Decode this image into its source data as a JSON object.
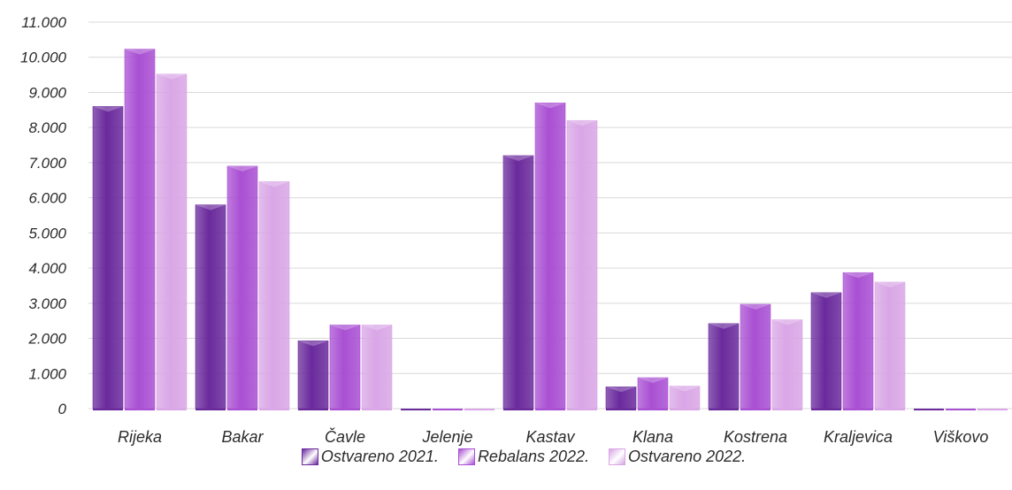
{
  "colors": {
    "series": [
      "#6a2a9c",
      "#a94fd3",
      "#d9a6e6"
    ],
    "grid": "#d9d9d9",
    "text": "#2b2b2b"
  },
  "chart_data": {
    "type": "bar",
    "title": "",
    "xlabel": "",
    "ylabel": "",
    "ylim": [
      0,
      11000
    ],
    "grid": true,
    "legend_position": "bottom",
    "y_ticks": [
      {
        "value": 0,
        "label": "0"
      },
      {
        "value": 1000,
        "label": "1.000"
      },
      {
        "value": 2000,
        "label": "2.000"
      },
      {
        "value": 3000,
        "label": "3.000"
      },
      {
        "value": 4000,
        "label": "4.000"
      },
      {
        "value": 5000,
        "label": "5.000"
      },
      {
        "value": 6000,
        "label": "6.000"
      },
      {
        "value": 7000,
        "label": "7.000"
      },
      {
        "value": 8000,
        "label": "8.000"
      },
      {
        "value": 9000,
        "label": "9.000"
      },
      {
        "value": 10000,
        "label": "10.000"
      },
      {
        "value": 11000,
        "label": "11.000"
      }
    ],
    "categories": [
      "Rijeka",
      "Bakar",
      "Čavle",
      "Jelenje",
      "Kastav",
      "Klana",
      "Kostrena",
      "Kraljevica",
      "Viškovo"
    ],
    "series": [
      {
        "name": "Ostvareno 2021.",
        "values": [
          8600,
          5800,
          1930,
          0,
          7200,
          620,
          2420,
          3300,
          0
        ]
      },
      {
        "name": "Rebalans 2022.",
        "values": [
          10230,
          6900,
          2380,
          0,
          8700,
          880,
          2970,
          3870,
          0
        ]
      },
      {
        "name": "Ostvareno 2022.",
        "values": [
          9520,
          6460,
          2380,
          0,
          8200,
          640,
          2530,
          3600,
          0
        ]
      }
    ]
  }
}
